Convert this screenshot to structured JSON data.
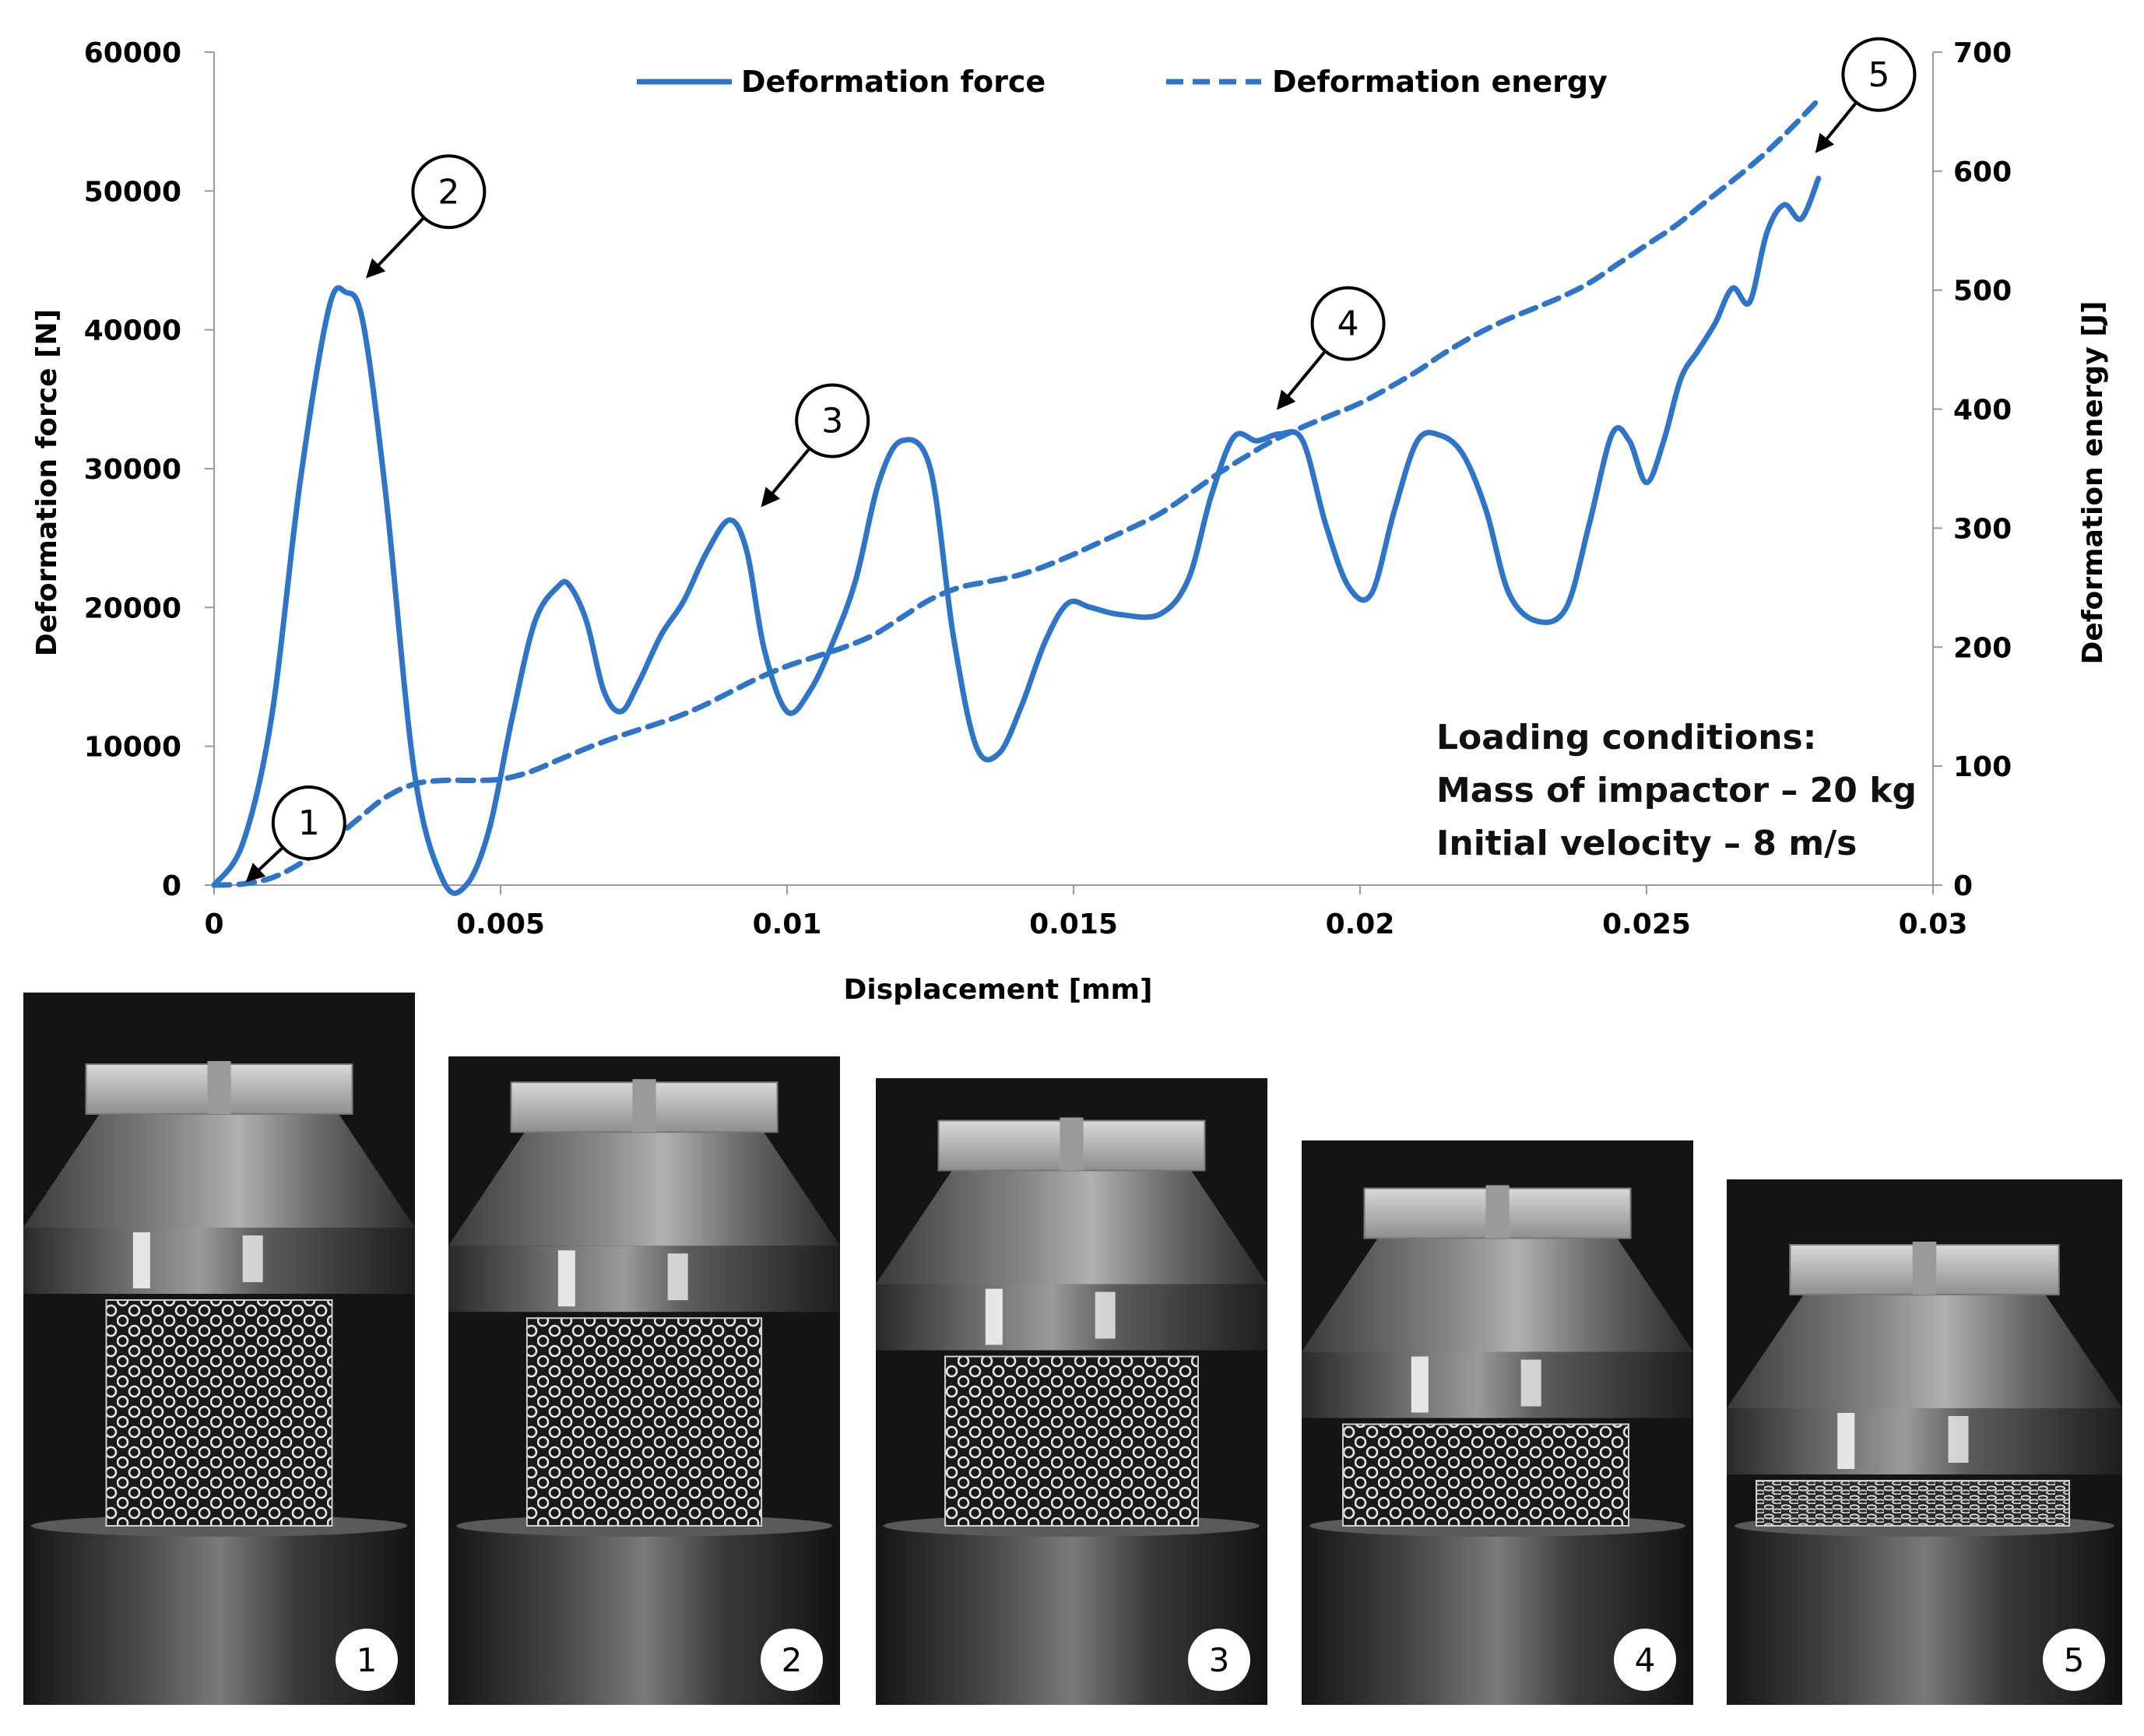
{
  "chart_data": {
    "type": "line",
    "xlabel": "Displacement [mm]",
    "ylabel_left": "Deformation force [N]",
    "ylabel_right": "Deformation energy [J]",
    "xlim": [
      0,
      0.03
    ],
    "ylim_left": [
      0,
      60000
    ],
    "ylim_right": [
      0,
      700
    ],
    "x_ticks": [
      "0",
      "0.005",
      "0.01",
      "0.015",
      "0.02",
      "0.025",
      "0.03"
    ],
    "x_tick_values": [
      0,
      0.005,
      0.01,
      0.015,
      0.02,
      0.025,
      0.03
    ],
    "y_left_ticks": [
      "0",
      "10000",
      "20000",
      "30000",
      "40000",
      "50000",
      "60000"
    ],
    "y_left_tick_values": [
      0,
      10000,
      20000,
      30000,
      40000,
      50000,
      60000
    ],
    "y_right_ticks": [
      "0",
      "100",
      "200",
      "300",
      "400",
      "500",
      "600",
      "700"
    ],
    "y_right_tick_values": [
      0,
      100,
      200,
      300,
      400,
      500,
      600,
      700
    ],
    "legend": {
      "position": "top"
    },
    "series": [
      {
        "name": "Deformation force",
        "axis": "left",
        "style": "solid",
        "color": "#2E75C8",
        "x": [
          0,
          0.0005,
          0.001,
          0.0015,
          0.002,
          0.0023,
          0.0026,
          0.003,
          0.0035,
          0.004,
          0.0044,
          0.0048,
          0.0052,
          0.0056,
          0.006,
          0.0062,
          0.0065,
          0.0068,
          0.0071,
          0.0074,
          0.0078,
          0.0082,
          0.0086,
          0.009,
          0.0093,
          0.0096,
          0.01,
          0.0104,
          0.0108,
          0.0112,
          0.0116,
          0.012,
          0.0125,
          0.0129,
          0.0133,
          0.0137,
          0.0141,
          0.0145,
          0.0149,
          0.0153,
          0.0158,
          0.0165,
          0.017,
          0.0174,
          0.0178,
          0.0182,
          0.0186,
          0.019,
          0.0194,
          0.0198,
          0.0202,
          0.0206,
          0.021,
          0.0214,
          0.0218,
          0.0222,
          0.0226,
          0.0231,
          0.0236,
          0.024,
          0.0244,
          0.0247,
          0.025,
          0.0253,
          0.0256,
          0.0259,
          0.0262,
          0.0265,
          0.0268,
          0.0271,
          0.0274,
          0.0277,
          0.028
        ],
        "y": [
          0,
          3000,
          12000,
          29000,
          41500,
          42700,
          40500,
          28000,
          8000,
          300,
          0,
          4000,
          12000,
          19000,
          21500,
          21600,
          19000,
          14000,
          12500,
          14500,
          18000,
          20500,
          24000,
          26300,
          24000,
          17000,
          12500,
          14000,
          17500,
          22000,
          29000,
          32000,
          30000,
          18000,
          10000,
          9500,
          13000,
          17500,
          20300,
          20000,
          19500,
          19500,
          22000,
          28000,
          32300,
          32000,
          32500,
          32000,
          26000,
          21500,
          21000,
          27000,
          32000,
          32400,
          31000,
          27000,
          21000,
          19000,
          20000,
          26000,
          32500,
          32000,
          29000,
          32000,
          36500,
          38500,
          40500,
          43000,
          42000,
          47000,
          49000,
          48000,
          50900
        ]
      },
      {
        "name": "Deformation energy",
        "axis": "right",
        "style": "dashed",
        "color": "#2E75C8",
        "x": [
          0,
          0.0005,
          0.001,
          0.0015,
          0.002,
          0.0025,
          0.003,
          0.0035,
          0.004,
          0.0045,
          0.005,
          0.0055,
          0.006,
          0.0065,
          0.007,
          0.0075,
          0.008,
          0.0085,
          0.009,
          0.0095,
          0.01,
          0.0105,
          0.011,
          0.0115,
          0.012,
          0.0125,
          0.013,
          0.0135,
          0.014,
          0.0145,
          0.015,
          0.0155,
          0.016,
          0.0165,
          0.017,
          0.0175,
          0.018,
          0.0185,
          0.019,
          0.0195,
          0.02,
          0.0205,
          0.021,
          0.0215,
          0.022,
          0.0225,
          0.023,
          0.0235,
          0.024,
          0.0245,
          0.025,
          0.0255,
          0.026,
          0.0265,
          0.027,
          0.0275,
          0.028
        ],
        "y": [
          0,
          1,
          6,
          18,
          35,
          55,
          74,
          85,
          88,
          88,
          89,
          95,
          105,
          115,
          124,
          132,
          140,
          150,
          162,
          174,
          184,
          192,
          200,
          210,
          225,
          240,
          250,
          255,
          260,
          268,
          278,
          289,
          300,
          312,
          328,
          345,
          360,
          374,
          385,
          395,
          405,
          418,
          432,
          448,
          462,
          474,
          484,
          494,
          506,
          522,
          538,
          554,
          573,
          592,
          612,
          635,
          660
        ]
      }
    ],
    "callouts": [
      {
        "label": "1",
        "x": 0.0005,
        "y_left": 0
      },
      {
        "label": "2",
        "x": 0.0026,
        "y_left": 43500
      },
      {
        "label": "3",
        "x": 0.0095,
        "y_left": 27000
      },
      {
        "label": "4",
        "x": 0.0185,
        "y_left": 34000
      },
      {
        "label": "5",
        "x": 0.0279,
        "y_left": 52500
      }
    ]
  },
  "loading_conditions": {
    "title": "Loading conditions:",
    "mass": "Mass of impactor – 20 kg",
    "velocity": "Initial velocity – 8 m/s"
  },
  "photos": [
    {
      "number": "1",
      "compression": 0.0
    },
    {
      "number": "2",
      "compression": 0.08
    },
    {
      "number": "3",
      "compression": 0.25
    },
    {
      "number": "4",
      "compression": 0.55
    },
    {
      "number": "5",
      "compression": 0.8
    }
  ]
}
